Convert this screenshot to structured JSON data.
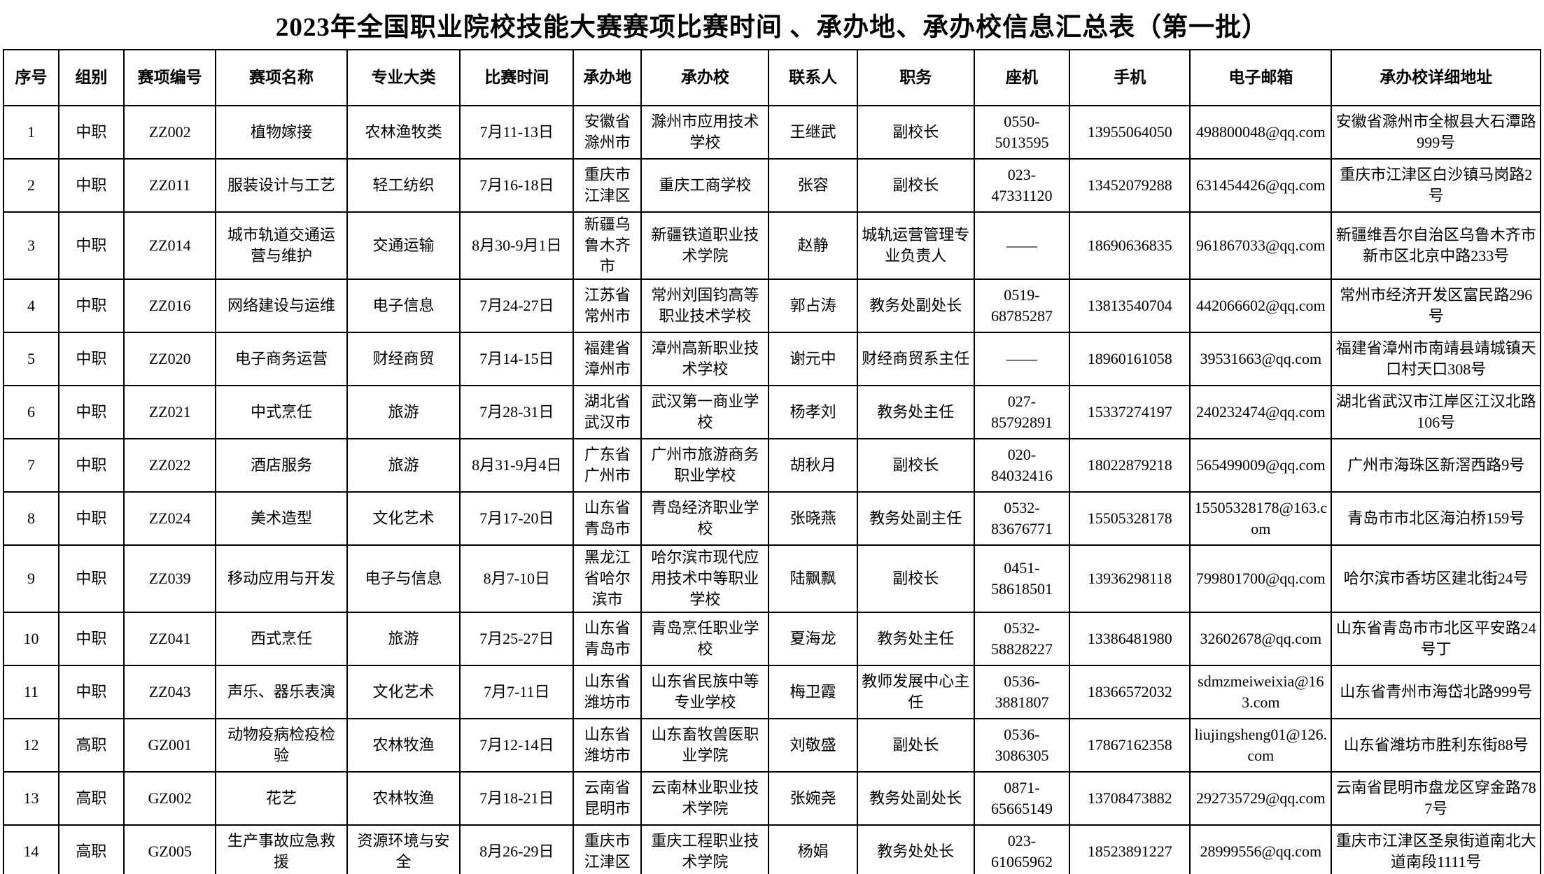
{
  "title": "2023年全国职业院校技能大赛赛项比赛时间 、承办地、承办校信息汇总表（第一批）",
  "table": {
    "columns": [
      {
        "key": "xuhao",
        "label": "序号"
      },
      {
        "key": "zubie",
        "label": "组别"
      },
      {
        "key": "saixiang_bianhao",
        "label": "赛项编号"
      },
      {
        "key": "saixiang_mingcheng",
        "label": "赛项名称"
      },
      {
        "key": "zhuanye_dalei",
        "label": "专业大类"
      },
      {
        "key": "bisai_shijian",
        "label": "比赛时间"
      },
      {
        "key": "chengbandi",
        "label": "承办地"
      },
      {
        "key": "chengbanxiao",
        "label": "承办校"
      },
      {
        "key": "lianxiren",
        "label": "联系人"
      },
      {
        "key": "zhiwu",
        "label": "职务"
      },
      {
        "key": "zuoji",
        "label": "座机"
      },
      {
        "key": "shouji",
        "label": "手机"
      },
      {
        "key": "email",
        "label": "电子邮箱"
      },
      {
        "key": "dizhi",
        "label": "承办校详细地址"
      }
    ],
    "rows": [
      {
        "xuhao": "1",
        "zubie": "中职",
        "saixiang_bianhao": "ZZ002",
        "saixiang_mingcheng": "植物嫁接",
        "zhuanye_dalei": "农林渔牧类",
        "bisai_shijian": "7月11-13日",
        "chengbandi": "安徽省滁州市",
        "chengbanxiao": "滁州市应用技术学校",
        "lianxiren": "王继武",
        "zhiwu": "副校长",
        "zuoji": "0550-\n5013595",
        "shouji": "13955064050",
        "email": "498800048@qq.com",
        "dizhi": "安徽省滁州市全椒县大石潭路999号"
      },
      {
        "xuhao": "2",
        "zubie": "中职",
        "saixiang_bianhao": "ZZ011",
        "saixiang_mingcheng": "服装设计与工艺",
        "zhuanye_dalei": "轻工纺织",
        "bisai_shijian": "7月16-18日",
        "chengbandi": "重庆市江津区",
        "chengbanxiao": "重庆工商学校",
        "lianxiren": "张容",
        "zhiwu": "副校长",
        "zuoji": "023-\n47331120",
        "shouji": "13452079288",
        "email": "631454426@qq.com",
        "dizhi": "重庆市江津区白沙镇马岗路2号"
      },
      {
        "xuhao": "3",
        "zubie": "中职",
        "saixiang_bianhao": "ZZ014",
        "saixiang_mingcheng": "城市轨道交通运营与维护",
        "zhuanye_dalei": "交通运输",
        "bisai_shijian": "8月30-9月1日",
        "chengbandi": "新疆乌鲁木齐市",
        "chengbanxiao": "新疆铁道职业技术学院",
        "lianxiren": "赵静",
        "zhiwu": "城轨运营管理专业负责人",
        "zuoji": "——",
        "shouji": "18690636835",
        "email": "961867033@qq.com",
        "dizhi": "新疆维吾尔自治区乌鲁木齐市新市区北京中路233号"
      },
      {
        "xuhao": "4",
        "zubie": "中职",
        "saixiang_bianhao": "ZZ016",
        "saixiang_mingcheng": "网络建设与运维",
        "zhuanye_dalei": "电子信息",
        "bisai_shijian": "7月24-27日",
        "chengbandi": "江苏省常州市",
        "chengbanxiao": "常州刘国钧高等职业技术学校",
        "lianxiren": "郭占涛",
        "zhiwu": "教务处副处长",
        "zuoji": "0519-\n68785287",
        "shouji": "13813540704",
        "email": "442066602@qq.com",
        "dizhi": "常州市经济开发区富民路296号"
      },
      {
        "xuhao": "5",
        "zubie": "中职",
        "saixiang_bianhao": "ZZ020",
        "saixiang_mingcheng": "电子商务运营",
        "zhuanye_dalei": "财经商贸",
        "bisai_shijian": "7月14-15日",
        "chengbandi": "福建省漳州市",
        "chengbanxiao": "漳州高新职业技术学校",
        "lianxiren": "谢元中",
        "zhiwu": "财经商贸系主任",
        "zuoji": "——",
        "shouji": "18960161058",
        "email": "39531663@qq.com",
        "dizhi": "福建省漳州市南靖县靖城镇天口村天口308号"
      },
      {
        "xuhao": "6",
        "zubie": "中职",
        "saixiang_bianhao": "ZZ021",
        "saixiang_mingcheng": "中式烹任",
        "zhuanye_dalei": "旅游",
        "bisai_shijian": "7月28-31日",
        "chengbandi": "湖北省武汉市",
        "chengbanxiao": "武汉第一商业学校",
        "lianxiren": "杨孝刘",
        "zhiwu": "教务处主任",
        "zuoji": "027-\n85792891",
        "shouji": "15337274197",
        "email": "240232474@qq.com",
        "dizhi": "湖北省武汉市江岸区江汉北路106号"
      },
      {
        "xuhao": "7",
        "zubie": "中职",
        "saixiang_bianhao": "ZZ022",
        "saixiang_mingcheng": "酒店服务",
        "zhuanye_dalei": "旅游",
        "bisai_shijian": "8月31-9月4日",
        "chengbandi": "广东省广州市",
        "chengbanxiao": "广州市旅游商务职业学校",
        "lianxiren": "胡秋月",
        "zhiwu": "副校长",
        "zuoji": "020-\n84032416",
        "shouji": "18022879218",
        "email": "565499009@qq.com",
        "dizhi": "广州市海珠区新滘西路9号"
      },
      {
        "xuhao": "8",
        "zubie": "中职",
        "saixiang_bianhao": "ZZ024",
        "saixiang_mingcheng": "美术造型",
        "zhuanye_dalei": "文化艺术",
        "bisai_shijian": "7月17-20日",
        "chengbandi": "山东省青岛市",
        "chengbanxiao": "青岛经济职业学校",
        "lianxiren": "张晓燕",
        "zhiwu": "教务处副主任",
        "zuoji": "0532-\n83676771",
        "shouji": "15505328178",
        "email": "15505328178@163.com",
        "dizhi": "青岛市市北区海泊桥159号"
      },
      {
        "xuhao": "9",
        "zubie": "中职",
        "saixiang_bianhao": "ZZ039",
        "saixiang_mingcheng": "移动应用与开发",
        "zhuanye_dalei": "电子与信息",
        "bisai_shijian": "8月7-10日",
        "chengbandi": "黑龙江省哈尔滨市",
        "chengbanxiao": "哈尔滨市现代应用技术中等职业学校",
        "lianxiren": "陆飘飘",
        "zhiwu": "副校长",
        "zuoji": "0451-\n58618501",
        "shouji": "13936298118",
        "email": "799801700@qq.com",
        "dizhi": "哈尔滨市香坊区建北街24号"
      },
      {
        "xuhao": "10",
        "zubie": "中职",
        "saixiang_bianhao": "ZZ041",
        "saixiang_mingcheng": "西式烹任",
        "zhuanye_dalei": "旅游",
        "bisai_shijian": "7月25-27日",
        "chengbandi": "山东省青岛市",
        "chengbanxiao": "青岛烹任职业学校",
        "lianxiren": "夏海龙",
        "zhiwu": "教务处主任",
        "zuoji": "0532-\n58828227",
        "shouji": "13386481980",
        "email": "32602678@qq.com",
        "dizhi": "山东省青岛市市北区平安路24号丁"
      },
      {
        "xuhao": "11",
        "zubie": "中职",
        "saixiang_bianhao": "ZZ043",
        "saixiang_mingcheng": "声乐、器乐表演",
        "zhuanye_dalei": "文化艺术",
        "bisai_shijian": "7月7-11日",
        "chengbandi": "山东省潍坊市",
        "chengbanxiao": "山东省民族中等专业学校",
        "lianxiren": "梅卫霞",
        "zhiwu": "教师发展中心主任",
        "zuoji": "0536-\n3881807",
        "shouji": "18366572032",
        "email": "sdmzmeiweixia@163.com",
        "dizhi": "山东省青州市海岱北路999号"
      },
      {
        "xuhao": "12",
        "zubie": "高职",
        "saixiang_bianhao": "GZ001",
        "saixiang_mingcheng": "动物疫病检疫检验",
        "zhuanye_dalei": "农林牧渔",
        "bisai_shijian": "7月12-14日",
        "chengbandi": "山东省潍坊市",
        "chengbanxiao": "山东畜牧兽医职业学院",
        "lianxiren": "刘敬盛",
        "zhiwu": "副处长",
        "zuoji": "0536-\n3086305",
        "shouji": "17867162358",
        "email": "liujingsheng01@126.com",
        "dizhi": "山东省潍坊市胜利东街88号"
      },
      {
        "xuhao": "13",
        "zubie": "高职",
        "saixiang_bianhao": "GZ002",
        "saixiang_mingcheng": "花艺",
        "zhuanye_dalei": "农林牧渔",
        "bisai_shijian": "7月18-21日",
        "chengbandi": "云南省昆明市",
        "chengbanxiao": "云南林业职业技术学院",
        "lianxiren": "张婉尧",
        "zhiwu": "教务处副处长",
        "zuoji": "0871-\n65665149",
        "shouji": "13708473882",
        "email": "292735729@qq.com",
        "dizhi": "云南省昆明市盘龙区穿金路787号"
      },
      {
        "xuhao": "14",
        "zubie": "高职",
        "saixiang_bianhao": "GZ005",
        "saixiang_mingcheng": "生产事故应急救援",
        "zhuanye_dalei": "资源环境与安全",
        "bisai_shijian": "8月26-29日",
        "chengbandi": "重庆市江津区",
        "chengbanxiao": "重庆工程职业技术学院",
        "lianxiren": "杨娟",
        "zhiwu": "教务处处长",
        "zuoji": "023-\n61065962",
        "shouji": "18523891227",
        "email": "28999556@qq.com",
        "dizhi": "重庆市江津区圣泉街道南北大道南段1111号"
      }
    ]
  }
}
